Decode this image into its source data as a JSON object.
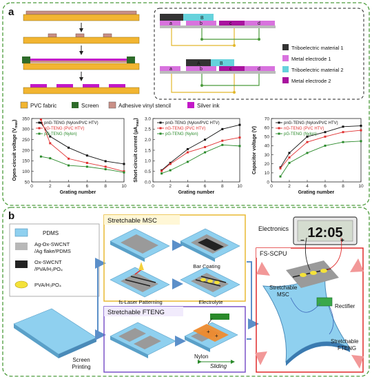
{
  "panel_a": {
    "label": "a",
    "fab_legend": [
      {
        "label": "PVC fabric",
        "color": "#f2b531"
      },
      {
        "label": "Screen",
        "color": "#2e6b2a"
      },
      {
        "label": "Adhesive vinyl stencil",
        "color": "#c98f86"
      },
      {
        "label": "Silver ink",
        "color": "#c318c8"
      }
    ],
    "material_legend": [
      {
        "label": "Triboelectric material 1",
        "color": "#333333"
      },
      {
        "label": "Metal electrode 1",
        "color": "#d872de"
      },
      {
        "label": "Triboelectric material 2",
        "color": "#66d2dc"
      },
      {
        "label": "Metal electrode 2",
        "color": "#a8129e"
      }
    ],
    "structure_letters": {
      "top": [
        "a",
        "b",
        "c",
        "d"
      ],
      "bottom": [
        "a",
        "b",
        "c",
        "d"
      ],
      "top_block": "B",
      "bottom_block": "B",
      "bottom_left": "A"
    }
  },
  "chart_data": [
    {
      "type": "line",
      "xlabel": "Grating number",
      "ylabel": "Open-circuit voltage (V",
      "ylabel_sub": "max",
      "ylabel_end": ")",
      "xlim": [
        0,
        10
      ],
      "ylim": [
        50,
        350
      ],
      "xticks": [
        0,
        2,
        4,
        6,
        8,
        10
      ],
      "yticks": [
        50,
        100,
        150,
        200,
        250,
        300,
        350
      ],
      "series": [
        {
          "name": "pnG-TENG (Nylon/PVC HTV)",
          "color": "#111111",
          "x": [
            1,
            2,
            4,
            6,
            8,
            10
          ],
          "y": [
            330,
            265,
            212,
            175,
            148,
            135
          ]
        },
        {
          "name": "nG-TENG (PVC HTV)",
          "color": "#e03030",
          "x": [
            1,
            2,
            4,
            6,
            8,
            10
          ],
          "y": [
            345,
            233,
            160,
            140,
            122,
            100
          ]
        },
        {
          "name": "pG-TENG (Nylon)",
          "color": "#2a8a2a",
          "x": [
            1,
            2,
            4,
            6,
            8,
            10
          ],
          "y": [
            170,
            162,
            128,
            122,
            110,
            95
          ]
        }
      ]
    },
    {
      "type": "line",
      "xlabel": "Grating number",
      "ylabel": "Short-circuit current (µA",
      "ylabel_sub": "max",
      "ylabel_end": ")",
      "xlim": [
        0,
        10
      ],
      "ylim": [
        0.0,
        3.0
      ],
      "xticks": [
        0,
        2,
        4,
        6,
        8,
        10
      ],
      "yticks": [
        "0.0",
        "0.5",
        "1.0",
        "1.5",
        "2.0",
        "2.5",
        "3.0"
      ],
      "series": [
        {
          "name": "pnG-TENG (Nylon/PVC HTV)",
          "color": "#111111",
          "x": [
            1,
            2,
            4,
            6,
            8,
            10
          ],
          "y": [
            0.55,
            0.9,
            1.55,
            2.0,
            2.5,
            2.7
          ]
        },
        {
          "name": "nG-TENG (PVC HTV)",
          "color": "#e03030",
          "x": [
            1,
            2,
            4,
            6,
            8,
            10
          ],
          "y": [
            0.52,
            0.85,
            1.4,
            1.65,
            1.95,
            2.1
          ]
        },
        {
          "name": "pG-TENG (Nylon)",
          "color": "#2a8a2a",
          "x": [
            1,
            2,
            4,
            6,
            8,
            10
          ],
          "y": [
            0.4,
            0.55,
            0.95,
            1.4,
            1.75,
            1.7
          ]
        }
      ]
    },
    {
      "type": "line",
      "xlabel": "Grating number",
      "ylabel": "Capacitor voltage (V)",
      "ylabel_sub": "",
      "ylabel_end": "",
      "xlim": [
        0,
        10
      ],
      "ylim": [
        0,
        70
      ],
      "xticks": [
        0,
        2,
        4,
        6,
        8,
        10
      ],
      "yticks": [
        0,
        10,
        20,
        30,
        40,
        50,
        60,
        70
      ],
      "series": [
        {
          "name": "pnG-TENG (Nylon/PVC HTV)",
          "color": "#111111",
          "x": [
            1,
            2,
            4,
            6,
            8,
            10
          ],
          "y": [
            16,
            32,
            50,
            55,
            61,
            62
          ]
        },
        {
          "name": "nG-TENG (PVC HTV)",
          "color": "#e03030",
          "x": [
            1,
            2,
            4,
            6,
            8,
            10
          ],
          "y": [
            15,
            27,
            44,
            50,
            55,
            57
          ]
        },
        {
          "name": "pG-TENG (Nylon)",
          "color": "#2a8a2a",
          "x": [
            1,
            2,
            4,
            6,
            8,
            10
          ],
          "y": [
            6,
            21,
            32,
            40,
            44,
            45
          ]
        }
      ]
    }
  ],
  "panel_b": {
    "label": "b",
    "legend": [
      {
        "label": "PDMS",
        "color": "#8fd0ef"
      },
      {
        "label": "Ag-Ox-SWCNT\n/Ag flake/PDMS",
        "color": "#b8b8b8"
      },
      {
        "label": "Ox-SWCNT\n/PVA/H₃PO₄",
        "color": "#222222"
      },
      {
        "label": "PVA/H₃PO₄",
        "color": "#f4e23a"
      }
    ],
    "msc_title": "Stretchable  MSC",
    "bar_coating": "Bar Coating",
    "laser": "fs-Laser Patterning",
    "electrolyte": "Electrolyte",
    "screen_printing": "Screen\nPrinting",
    "fteng_title": "Stretchable  FTENG",
    "nylon": "Nylon",
    "sliding": "Sliding",
    "electronics": "Electronics",
    "clock": "12:05",
    "fs_scpu": "FS-SCPU",
    "msc_label": "Stretchable\nMSC",
    "rectifier": "Rectifier",
    "fteng_label": "Stretchable\nFTENG"
  }
}
